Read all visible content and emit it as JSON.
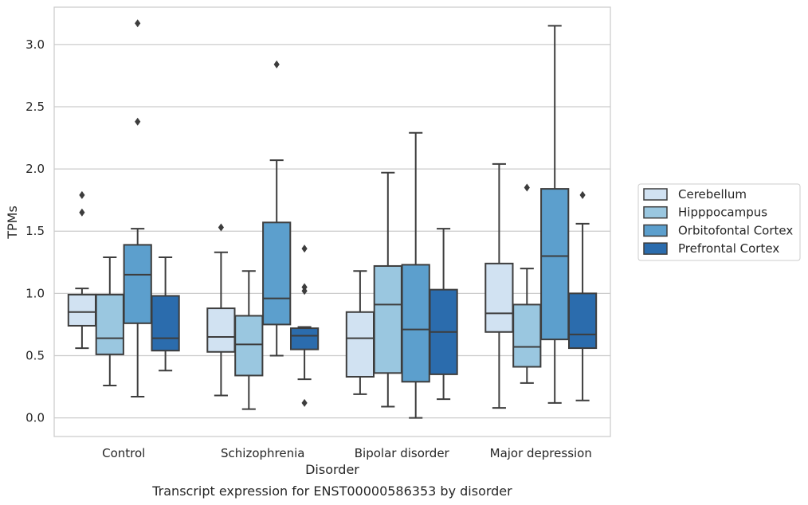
{
  "chart_data": {
    "type": "boxplot",
    "caption": "Transcript expression for ENST00000586353 by disorder",
    "xlabel": "Disorder",
    "ylabel": "TPMs",
    "ylim": [
      -0.15,
      3.3
    ],
    "yticks": [
      "0.0",
      "0.5",
      "1.0",
      "1.5",
      "2.0",
      "2.5",
      "3.0"
    ],
    "grid": "horizontal",
    "legend_position": "right",
    "categories": [
      "Control",
      "Schizophrenia",
      "Bipolar disorder",
      "Major depression"
    ],
    "series": [
      {
        "name": "Cerebellum",
        "color": "#d1e2f2",
        "boxes": [
          {
            "whislo": 0.56,
            "q1": 0.74,
            "med": 0.85,
            "q3": 0.99,
            "whishi": 1.04,
            "fliers": [
              1.65,
              1.79
            ]
          },
          {
            "whislo": 0.18,
            "q1": 0.53,
            "med": 0.65,
            "q3": 0.88,
            "whishi": 1.33,
            "fliers": [
              1.53
            ]
          },
          {
            "whislo": 0.19,
            "q1": 0.33,
            "med": 0.64,
            "q3": 0.85,
            "whishi": 1.18,
            "fliers": []
          },
          {
            "whislo": 0.08,
            "q1": 0.69,
            "med": 0.84,
            "q3": 1.24,
            "whishi": 2.04,
            "fliers": []
          }
        ]
      },
      {
        "name": "Hipppocampus",
        "color": "#9ac7e0",
        "boxes": [
          {
            "whislo": 0.26,
            "q1": 0.51,
            "med": 0.64,
            "q3": 0.99,
            "whishi": 1.29,
            "fliers": []
          },
          {
            "whislo": 0.07,
            "q1": 0.34,
            "med": 0.59,
            "q3": 0.82,
            "whishi": 1.18,
            "fliers": []
          },
          {
            "whislo": 0.09,
            "q1": 0.36,
            "med": 0.91,
            "q3": 1.22,
            "whishi": 1.97,
            "fliers": []
          },
          {
            "whislo": 0.28,
            "q1": 0.41,
            "med": 0.57,
            "q3": 0.91,
            "whishi": 1.2,
            "fliers": [
              1.85
            ]
          }
        ]
      },
      {
        "name": "Orbitofontal Cortex",
        "color": "#5c9fcd",
        "boxes": [
          {
            "whislo": 0.17,
            "q1": 0.76,
            "med": 1.15,
            "q3": 1.39,
            "whishi": 1.52,
            "fliers": [
              2.38,
              3.17
            ]
          },
          {
            "whislo": 0.5,
            "q1": 0.75,
            "med": 0.96,
            "q3": 1.57,
            "whishi": 2.07,
            "fliers": [
              2.84
            ]
          },
          {
            "whislo": 0.0,
            "q1": 0.29,
            "med": 0.71,
            "q3": 1.23,
            "whishi": 2.29,
            "fliers": []
          },
          {
            "whislo": 0.12,
            "q1": 0.63,
            "med": 1.3,
            "q3": 1.84,
            "whishi": 3.15,
            "fliers": []
          }
        ]
      },
      {
        "name": "Prefrontal Cortex",
        "color": "#2b6cad",
        "boxes": [
          {
            "whislo": 0.38,
            "q1": 0.54,
            "med": 0.64,
            "q3": 0.98,
            "whishi": 1.29,
            "fliers": []
          },
          {
            "whislo": 0.31,
            "q1": 0.55,
            "med": 0.66,
            "q3": 0.72,
            "whishi": 0.73,
            "fliers": [
              0.12,
              1.02,
              1.05,
              1.36
            ]
          },
          {
            "whislo": 0.15,
            "q1": 0.35,
            "med": 0.69,
            "q3": 1.03,
            "whishi": 1.52,
            "fliers": []
          },
          {
            "whislo": 0.14,
            "q1": 0.56,
            "med": 0.67,
            "q3": 1.0,
            "whishi": 1.56,
            "fliers": [
              1.79
            ]
          }
        ]
      }
    ]
  }
}
